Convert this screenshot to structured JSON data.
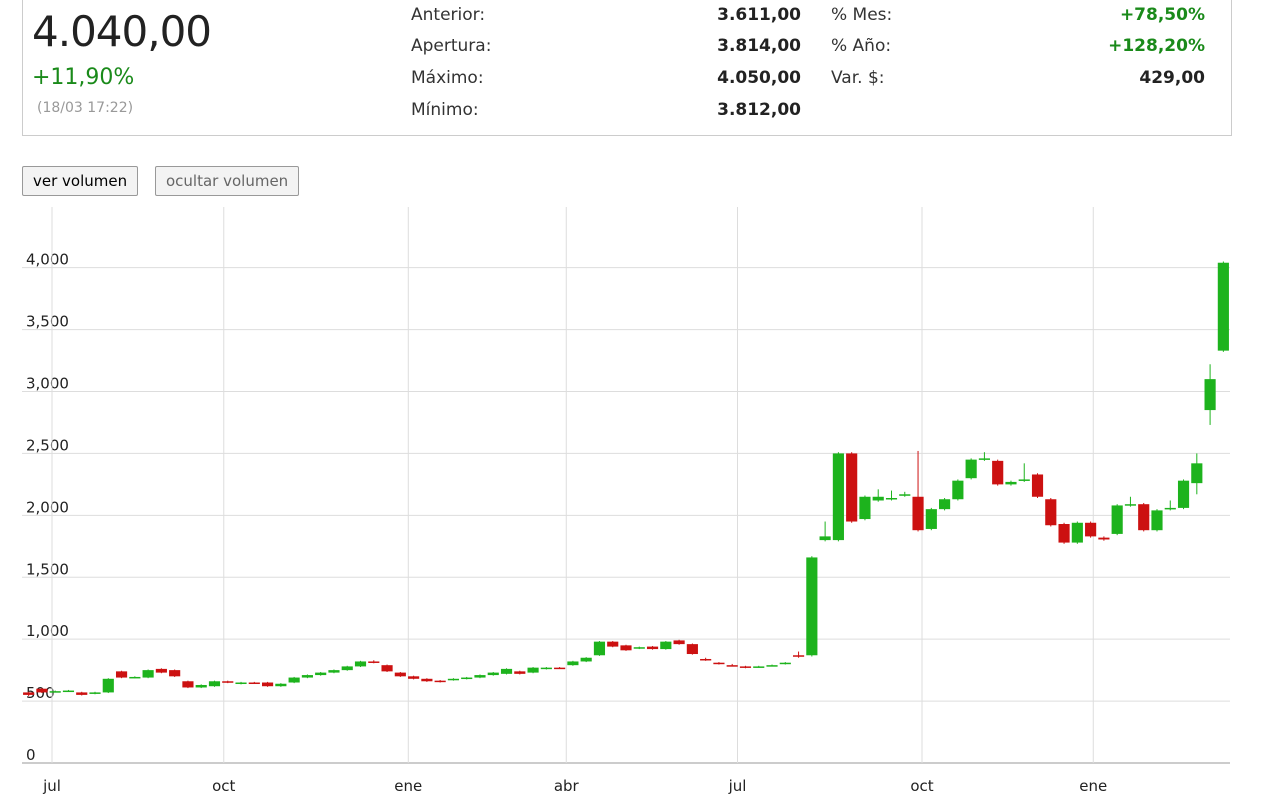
{
  "quote": {
    "price": "4.040,00",
    "change": "+11,90%",
    "time": "(18/03 17:22)",
    "stats": [
      {
        "label": "Anterior:",
        "value": "3.611,00"
      },
      {
        "label": "Apertura:",
        "value": "3.814,00"
      },
      {
        "label": "Máximo:",
        "value": "4.050,00"
      },
      {
        "label": "Mínimo:",
        "value": "3.812,00"
      }
    ],
    "stats2": [
      {
        "label": "% Mes:",
        "value": "+78,50%"
      },
      {
        "label": "% Año:",
        "value": "+128,20%"
      },
      {
        "label": "Var. $:",
        "value": "429,00"
      }
    ]
  },
  "buttons": [
    "ver volumen",
    "ocultar volumen"
  ],
  "chart_data": {
    "type": "candlestick",
    "up_color": "#1db31d",
    "down_color": "#cc1111",
    "grid": true,
    "xlim": [
      -0.5,
      90.5
    ],
    "xticks": [
      {
        "value": 1.76,
        "label": "jul"
      },
      {
        "value": 14.7,
        "label": "oct"
      },
      {
        "value": 28.6,
        "label": "ene"
      },
      {
        "value": 40.5,
        "label": "abr"
      },
      {
        "value": 53.4,
        "label": "jul"
      },
      {
        "value": 67.3,
        "label": "oct"
      },
      {
        "value": 80.2,
        "label": "ene"
      }
    ],
    "ylim": [
      0,
      4490
    ],
    "yticks": [
      0,
      500,
      {
        "value": 1000,
        "label": "1,000"
      },
      {
        "value": 1500,
        "label": "1,500"
      },
      {
        "value": 2000,
        "label": "2,000"
      },
      {
        "value": 2500,
        "label": "2,500"
      },
      {
        "value": 3000,
        "label": "3,000"
      },
      {
        "value": 3500,
        "label": "3,500"
      },
      {
        "value": 4000,
        "label": "4,000"
      }
    ],
    "open": [
      570,
      600,
      575,
      580,
      570,
      560,
      570,
      740,
      690,
      690,
      760,
      750,
      660,
      610,
      620,
      660,
      640,
      650,
      650,
      620,
      650,
      690,
      710,
      730,
      750,
      780,
      820,
      790,
      730,
      700,
      680,
      665,
      670,
      680,
      690,
      710,
      720,
      740,
      730,
      760,
      770,
      790,
      820,
      870,
      980,
      950,
      925,
      940,
      920,
      990,
      960,
      840,
      810,
      790,
      780,
      775,
      785,
      800,
      870,
      870,
      1800,
      1800,
      2500,
      1970,
      2120,
      2130,
      2160,
      2150,
      1890,
      2050,
      2130,
      2300,
      2450,
      2440,
      2250,
      2280,
      2330,
      2130,
      1930,
      1780,
      1940,
      1820,
      1850,
      2080,
      2090,
      1880,
      2050,
      2060,
      2260,
      2850,
      3330
    ],
    "high": [
      575,
      605,
      585,
      590,
      575,
      575,
      685,
      745,
      700,
      755,
      765,
      755,
      665,
      635,
      665,
      665,
      655,
      655,
      655,
      645,
      695,
      715,
      735,
      755,
      785,
      825,
      830,
      795,
      735,
      705,
      685,
      670,
      685,
      695,
      715,
      735,
      765,
      745,
      775,
      775,
      775,
      825,
      855,
      985,
      985,
      955,
      940,
      945,
      985,
      995,
      965,
      850,
      815,
      800,
      785,
      785,
      795,
      815,
      900,
      1670,
      1950,
      2510,
      2510,
      2160,
      2210,
      2200,
      2190,
      2520,
      2060,
      2140,
      2290,
      2460,
      2510,
      2450,
      2280,
      2420,
      2340,
      2140,
      1940,
      1950,
      1950,
      1830,
      2090,
      2150,
      2100,
      2050,
      2120,
      2290,
      2500,
      3220,
      4050
    ],
    "low": [
      540,
      565,
      570,
      575,
      545,
      555,
      565,
      685,
      685,
      685,
      725,
      695,
      605,
      605,
      615,
      645,
      635,
      640,
      615,
      615,
      645,
      685,
      705,
      725,
      745,
      775,
      805,
      735,
      695,
      675,
      655,
      650,
      665,
      675,
      685,
      705,
      715,
      715,
      725,
      755,
      760,
      785,
      815,
      865,
      935,
      905,
      920,
      915,
      915,
      955,
      875,
      825,
      795,
      780,
      765,
      770,
      780,
      795,
      850,
      860,
      1790,
      1790,
      1940,
      1960,
      2110,
      2120,
      2150,
      1870,
      1880,
      2040,
      2120,
      2290,
      2440,
      2240,
      2240,
      2270,
      2140,
      1910,
      1770,
      1770,
      1820,
      1795,
      1840,
      2070,
      1870,
      1870,
      2040,
      2050,
      2170,
      2730,
      3320
    ],
    "close": [
      550,
      570,
      580,
      585,
      550,
      570,
      680,
      690,
      695,
      750,
      730,
      700,
      610,
      630,
      660,
      650,
      650,
      645,
      620,
      640,
      690,
      710,
      730,
      750,
      780,
      820,
      810,
      740,
      700,
      680,
      660,
      655,
      680,
      690,
      710,
      730,
      760,
      720,
      770,
      770,
      765,
      820,
      850,
      980,
      940,
      910,
      935,
      920,
      980,
      960,
      880,
      830,
      800,
      785,
      770,
      780,
      790,
      810,
      860,
      1660,
      1830,
      2500,
      1950,
      2150,
      2150,
      2140,
      2170,
      1880,
      2050,
      2130,
      2280,
      2450,
      2460,
      2250,
      2270,
      2290,
      2150,
      1920,
      1780,
      1940,
      1830,
      1805,
      2080,
      2090,
      1880,
      2040,
      2060,
      2280,
      2420,
      3100,
      4040
    ]
  }
}
